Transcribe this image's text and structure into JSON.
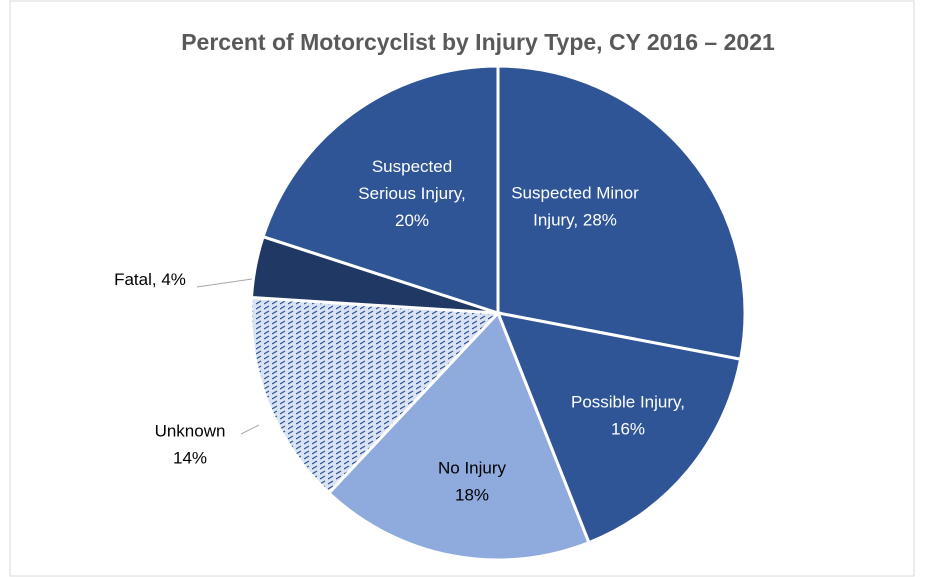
{
  "chart_data": {
    "type": "pie",
    "title": "Percent of Motorcyclist by Injury Type, CY 2016 – 2021",
    "values": [
      28,
      16,
      18,
      14,
      4,
      20
    ],
    "value_labels": [
      "Suspected Minor\nInjury, 28%",
      "Possible Injury,\n16%",
      "No Injury\n18%",
      "Unknown\n14%",
      "Fatal, 4%",
      "Suspected\nSerious Injury,\n20%"
    ],
    "colors": [
      "#2f5597",
      "#2f5597",
      "#8faadc",
      "#dae3f3",
      "#203864",
      "#2f5597"
    ],
    "hatched": [
      false,
      false,
      false,
      true,
      false,
      false
    ]
  }
}
